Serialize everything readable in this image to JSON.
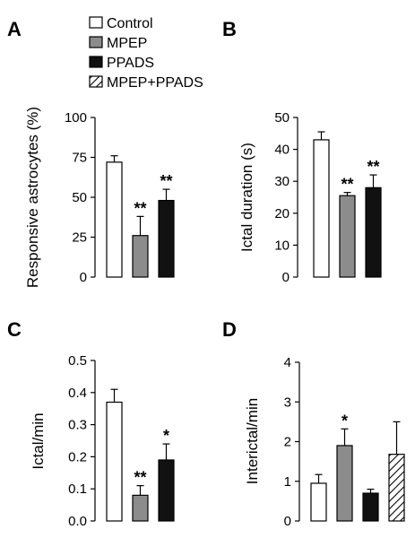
{
  "legend": [
    {
      "name": "Control",
      "fill": "#ffffff",
      "pattern": false
    },
    {
      "name": "MPEP",
      "fill": "#8c8c8c",
      "pattern": false
    },
    {
      "name": "PPADS",
      "fill": "#111111",
      "pattern": false
    },
    {
      "name": "MPEP+PPADS",
      "fill": "#ffffff",
      "pattern": true
    }
  ],
  "chart_data": [
    {
      "panel": "A",
      "type": "bar",
      "ylabel": "Responsive astrocytes (%)",
      "ylim": [
        0,
        100
      ],
      "yticks": [
        "0",
        "25",
        "50",
        "75",
        "100"
      ],
      "categories": [
        "Control",
        "MPEP",
        "PPADS"
      ],
      "values": [
        72,
        26,
        48
      ],
      "errors": [
        4,
        12,
        7
      ],
      "significance": [
        "",
        "**",
        "**"
      ]
    },
    {
      "panel": "B",
      "type": "bar",
      "ylabel": "Ictal duration (s)",
      "ylim": [
        0,
        50
      ],
      "yticks": [
        "0",
        "10",
        "20",
        "30",
        "40",
        "50"
      ],
      "categories": [
        "Control",
        "MPEP",
        "PPADS"
      ],
      "values": [
        43,
        25.5,
        28
      ],
      "errors": [
        2.5,
        1,
        4
      ],
      "significance": [
        "",
        "**",
        "**"
      ]
    },
    {
      "panel": "C",
      "type": "bar",
      "ylabel": "Ictal/min",
      "ylim": [
        0,
        0.5
      ],
      "yticks": [
        "0.0",
        "0.1",
        "0.2",
        "0.3",
        "0.4",
        "0.5"
      ],
      "categories": [
        "Control",
        "MPEP",
        "PPADS"
      ],
      "values": [
        0.37,
        0.08,
        0.19
      ],
      "errors": [
        0.04,
        0.03,
        0.05
      ],
      "significance": [
        "",
        "**",
        "*"
      ]
    },
    {
      "panel": "D",
      "type": "bar",
      "ylabel": "Interictal/min",
      "ylim": [
        0,
        4
      ],
      "yticks": [
        "0",
        "1",
        "2",
        "3",
        "4"
      ],
      "categories": [
        "Control",
        "MPEP",
        "PPADS",
        "MPEP+PPADS"
      ],
      "values": [
        0.95,
        1.9,
        0.7,
        1.68
      ],
      "errors": [
        0.22,
        0.42,
        0.1,
        0.82
      ],
      "significance": [
        "",
        "*",
        "",
        ""
      ]
    }
  ]
}
